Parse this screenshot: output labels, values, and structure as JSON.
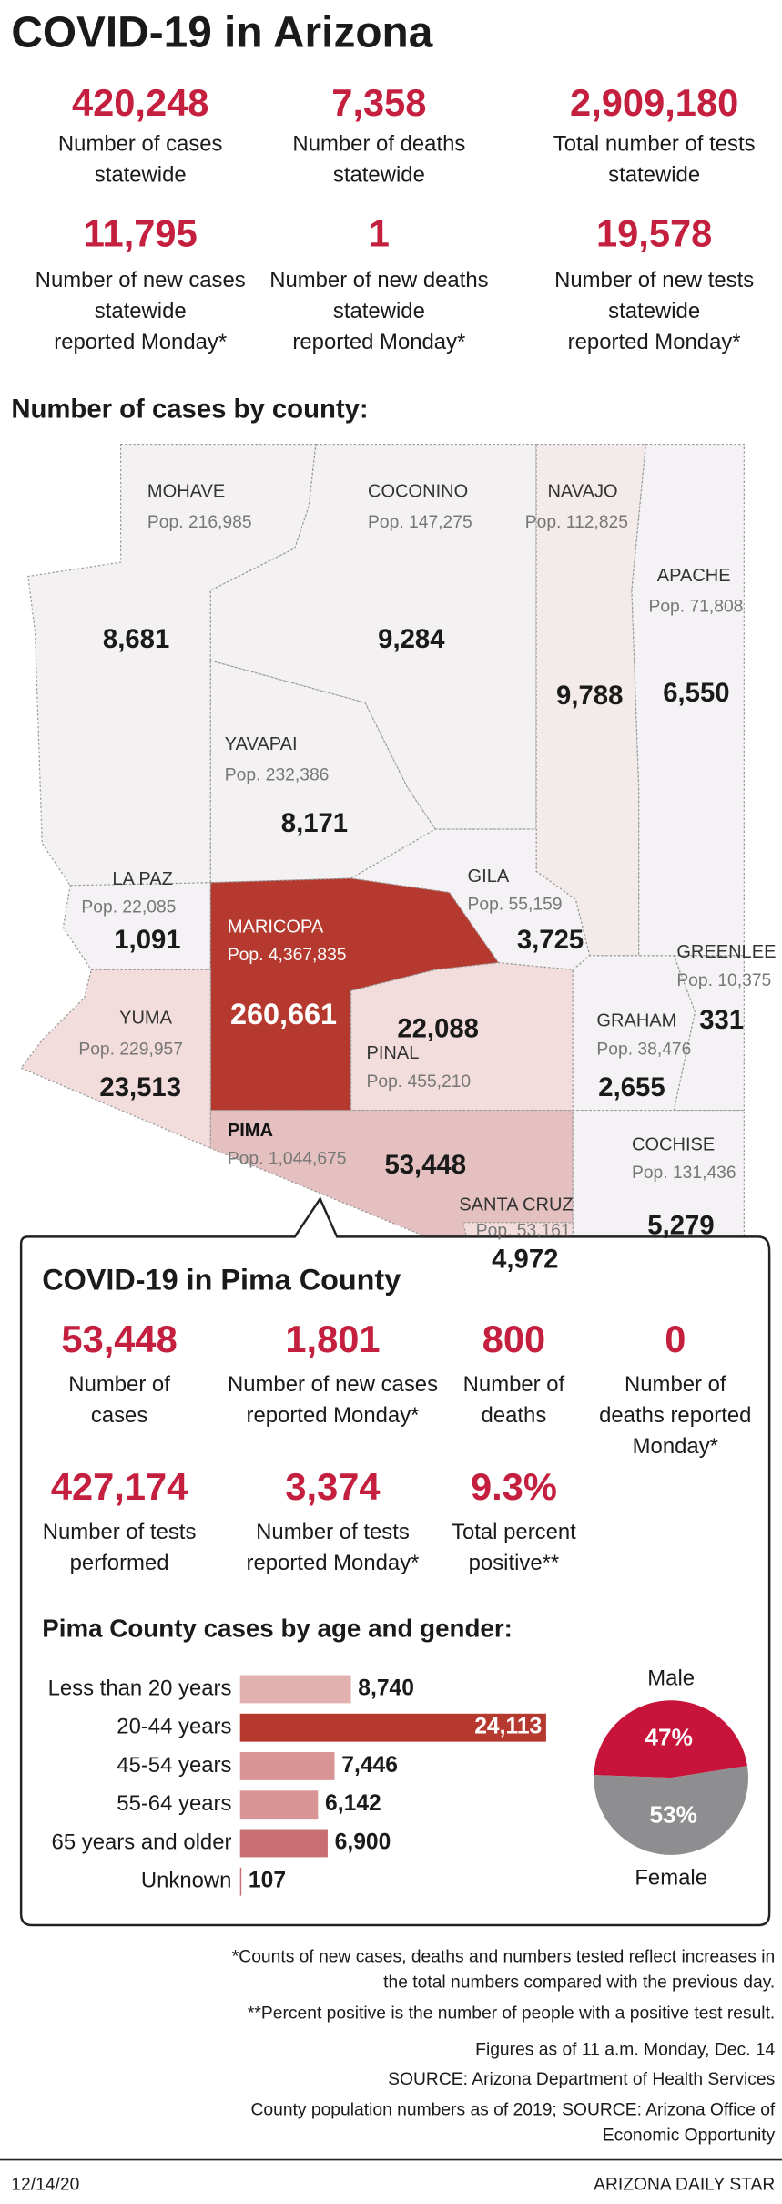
{
  "header": {
    "title": "COVID-19 in Arizona"
  },
  "statewide": [
    {
      "value": "420,248",
      "label": [
        "Number of cases",
        "statewide"
      ]
    },
    {
      "value": "7,358",
      "label": [
        "Number of deaths",
        "statewide"
      ]
    },
    {
      "value": "2,909,180",
      "label": [
        "Total number of tests",
        "statewide"
      ]
    },
    {
      "value": "11,795",
      "label": [
        "Number of new cases",
        "statewide",
        "reported Monday*"
      ]
    },
    {
      "value": "1",
      "label": [
        "Number of new deaths",
        "statewide",
        "reported Monday*"
      ]
    },
    {
      "value": "19,578",
      "label": [
        "Number of new tests",
        "statewide",
        "reported Monday*"
      ]
    }
  ],
  "map": {
    "title": "Number of cases by county:",
    "counties": [
      {
        "name": "MOHAVE",
        "population": "Pop. 216,985",
        "cases": "8,681"
      },
      {
        "name": "COCONINO",
        "population": "Pop. 147,275",
        "cases": "9,284"
      },
      {
        "name": "NAVAJO",
        "population": "Pop. 112,825",
        "cases": "9,788"
      },
      {
        "name": "APACHE",
        "population": "Pop. 71,808",
        "cases": "6,550"
      },
      {
        "name": "YAVAPAI",
        "population": "Pop. 232,386",
        "cases": "8,171"
      },
      {
        "name": "LA PAZ",
        "population": "Pop. 22,085",
        "cases": "1,091"
      },
      {
        "name": "GILA",
        "population": "Pop. 55,159",
        "cases": "3,725"
      },
      {
        "name": "MARICOPA",
        "population": "Pop. 4,367,835",
        "cases": "260,661"
      },
      {
        "name": "GREENLEE",
        "population": "Pop. 10,375",
        "cases": "331"
      },
      {
        "name": "YUMA",
        "population": "Pop. 229,957",
        "cases": "23,513"
      },
      {
        "name": "PINAL",
        "population": "Pop. 455,210",
        "cases": "22,088"
      },
      {
        "name": "GRAHAM",
        "population": "Pop. 38,476",
        "cases": "2,655"
      },
      {
        "name": "PIMA",
        "population": "Pop. 1,044,675",
        "cases": "53,448"
      },
      {
        "name": "COCHISE",
        "population": "Pop. 131,436",
        "cases": "5,279"
      },
      {
        "name": "SANTA CRUZ",
        "population": "Pop. 53,161",
        "cases": "4,972"
      }
    ]
  },
  "pima": {
    "title": "COVID-19 in Pima County",
    "stats": [
      {
        "value": "53,448",
        "label": [
          "Number of",
          "cases"
        ]
      },
      {
        "value": "1,801",
        "label": [
          "Number of new cases",
          "reported Monday*"
        ]
      },
      {
        "value": "800",
        "label": [
          "Number of",
          "deaths"
        ]
      },
      {
        "value": "0",
        "label": [
          "Number of",
          "deaths reported",
          "Monday*"
        ]
      },
      {
        "value": "427,174",
        "label": [
          "Number of tests",
          "performed"
        ]
      },
      {
        "value": "3,374",
        "label": [
          "Number of tests",
          "reported Monday*"
        ]
      },
      {
        "value": "9.3%",
        "label": [
          "Total percent",
          "positive**"
        ]
      }
    ],
    "chart_title": "Pima County cases by age and gender:"
  },
  "chart_data": [
    {
      "type": "bar",
      "categories": [
        "Less than 20 years",
        "20-44 years",
        "45-54 years",
        "55-64 years",
        "65 years and older",
        "Unknown"
      ],
      "values": [
        8740,
        24113,
        7446,
        6142,
        6900,
        107
      ],
      "value_labels": [
        "8,740",
        "24,113",
        "7,446",
        "6,142",
        "6,900",
        "107"
      ],
      "colors": [
        "#e3b0b0",
        "#b5392e",
        "#d99596",
        "#d99596",
        "#c96f71",
        "#c96f71"
      ]
    },
    {
      "type": "pie",
      "categories": [
        "Male",
        "Female"
      ],
      "values": [
        47,
        53
      ],
      "value_labels": [
        "47%",
        "53%"
      ],
      "colors": [
        "#c8133a",
        "#8e8e90"
      ]
    }
  ],
  "footnotes": [
    [
      "*Counts of new cases, deaths and numbers tested reflect increases in",
      "the total numbers compared with the previous day."
    ],
    [
      "**Percent positive is the number of people with a positive test result."
    ],
    [
      "Figures as of 11 a.m. Monday, Dec. 14"
    ],
    [
      "SOURCE: Arizona Department of Health Services"
    ],
    [
      "County population numbers as of 2019; SOURCE: Arizona Office of",
      "Economic Opportunity"
    ]
  ],
  "footer": {
    "date": "12/14/20",
    "publisher": "ARIZONA DAILY STAR"
  }
}
